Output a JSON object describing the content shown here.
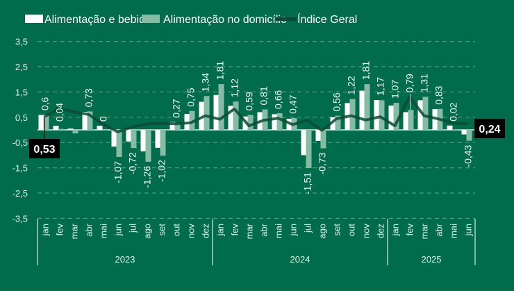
{
  "chart_data": {
    "type": "bar",
    "ylim": [
      -3.5,
      3.5
    ],
    "yticks": [
      "3,5",
      "2,5",
      "1,5",
      "0,5",
      "-0,5",
      "-1,5",
      "-2,5",
      "-3,5"
    ],
    "ytick_values": [
      3.5,
      2.5,
      1.5,
      0.5,
      -0.5,
      -1.5,
      -2.5,
      -3.5
    ],
    "grid": true,
    "legend_placement": "top",
    "categories": [
      "jan",
      "fev",
      "mar",
      "abr",
      "mai",
      "jun",
      "jul",
      "ago",
      "set",
      "out",
      "nov",
      "dez",
      "jan",
      "fev",
      "mar",
      "abr",
      "mai",
      "jun",
      "jul",
      "ago",
      "set",
      "out",
      "nov",
      "dez",
      "jan",
      "fev",
      "mar",
      "abr",
      "mai",
      "jun"
    ],
    "years": [
      {
        "label": "2023",
        "months": 12
      },
      {
        "label": "2024",
        "months": 12
      },
      {
        "label": "2025",
        "months": 6
      }
    ],
    "series": [
      {
        "name": "Alimentação e bebidas",
        "type": "bar",
        "color": "#ffffff",
        "values": [
          0.59,
          0.16,
          0.05,
          0.71,
          0.16,
          -0.66,
          -0.46,
          -0.85,
          -0.71,
          0.31,
          0.63,
          1.11,
          1.38,
          0.95,
          0.53,
          0.7,
          0.62,
          0.44,
          -1.0,
          -0.44,
          0.5,
          1.06,
          1.55,
          1.18,
          0.96,
          0.7,
          1.17,
          0.82,
          0.17,
          -0.18
        ]
      },
      {
        "name": "Alimentação no domicílio",
        "type": "bar",
        "color": "#86bca5",
        "values": [
          0.6,
          0.04,
          -0.14,
          0.73,
          0.0,
          -1.07,
          -0.72,
          -1.26,
          -1.02,
          0.27,
          0.75,
          1.34,
          1.81,
          1.12,
          0.59,
          0.81,
          0.66,
          0.47,
          -1.51,
          -0.73,
          0.56,
          1.22,
          1.81,
          1.17,
          1.07,
          0.79,
          1.31,
          0.83,
          0.02,
          -0.43
        ],
        "labels": [
          "0,6",
          "0,04",
          "",
          "0,73",
          "0",
          "-1,07",
          "-0,72",
          "-1,26",
          "-1,02",
          "0,27",
          "0,75",
          "1,34",
          "1,81",
          "1,12",
          "0,59",
          "0,81",
          "0,66",
          "0,47",
          "-1,51",
          "-0,73",
          "0,56",
          "1,22",
          "1,81",
          "1,17",
          "1,07",
          "0,79",
          "1,31",
          "0,83",
          "0,02",
          "-0,43"
        ]
      },
      {
        "name": "Índice Geral",
        "type": "line",
        "color": "#0d4a33",
        "values": [
          0.53,
          0.84,
          0.71,
          0.61,
          0.23,
          -0.08,
          0.12,
          0.23,
          0.26,
          0.24,
          0.28,
          0.56,
          0.42,
          0.83,
          0.16,
          0.38,
          0.46,
          0.21,
          0.38,
          -0.02,
          0.44,
          0.56,
          0.39,
          0.52,
          0.16,
          1.31,
          0.56,
          0.43,
          0.26,
          0.24
        ]
      }
    ],
    "callouts": [
      {
        "index": 0,
        "label": "0,53"
      },
      {
        "index": 29,
        "label": "0,24"
      }
    ]
  }
}
